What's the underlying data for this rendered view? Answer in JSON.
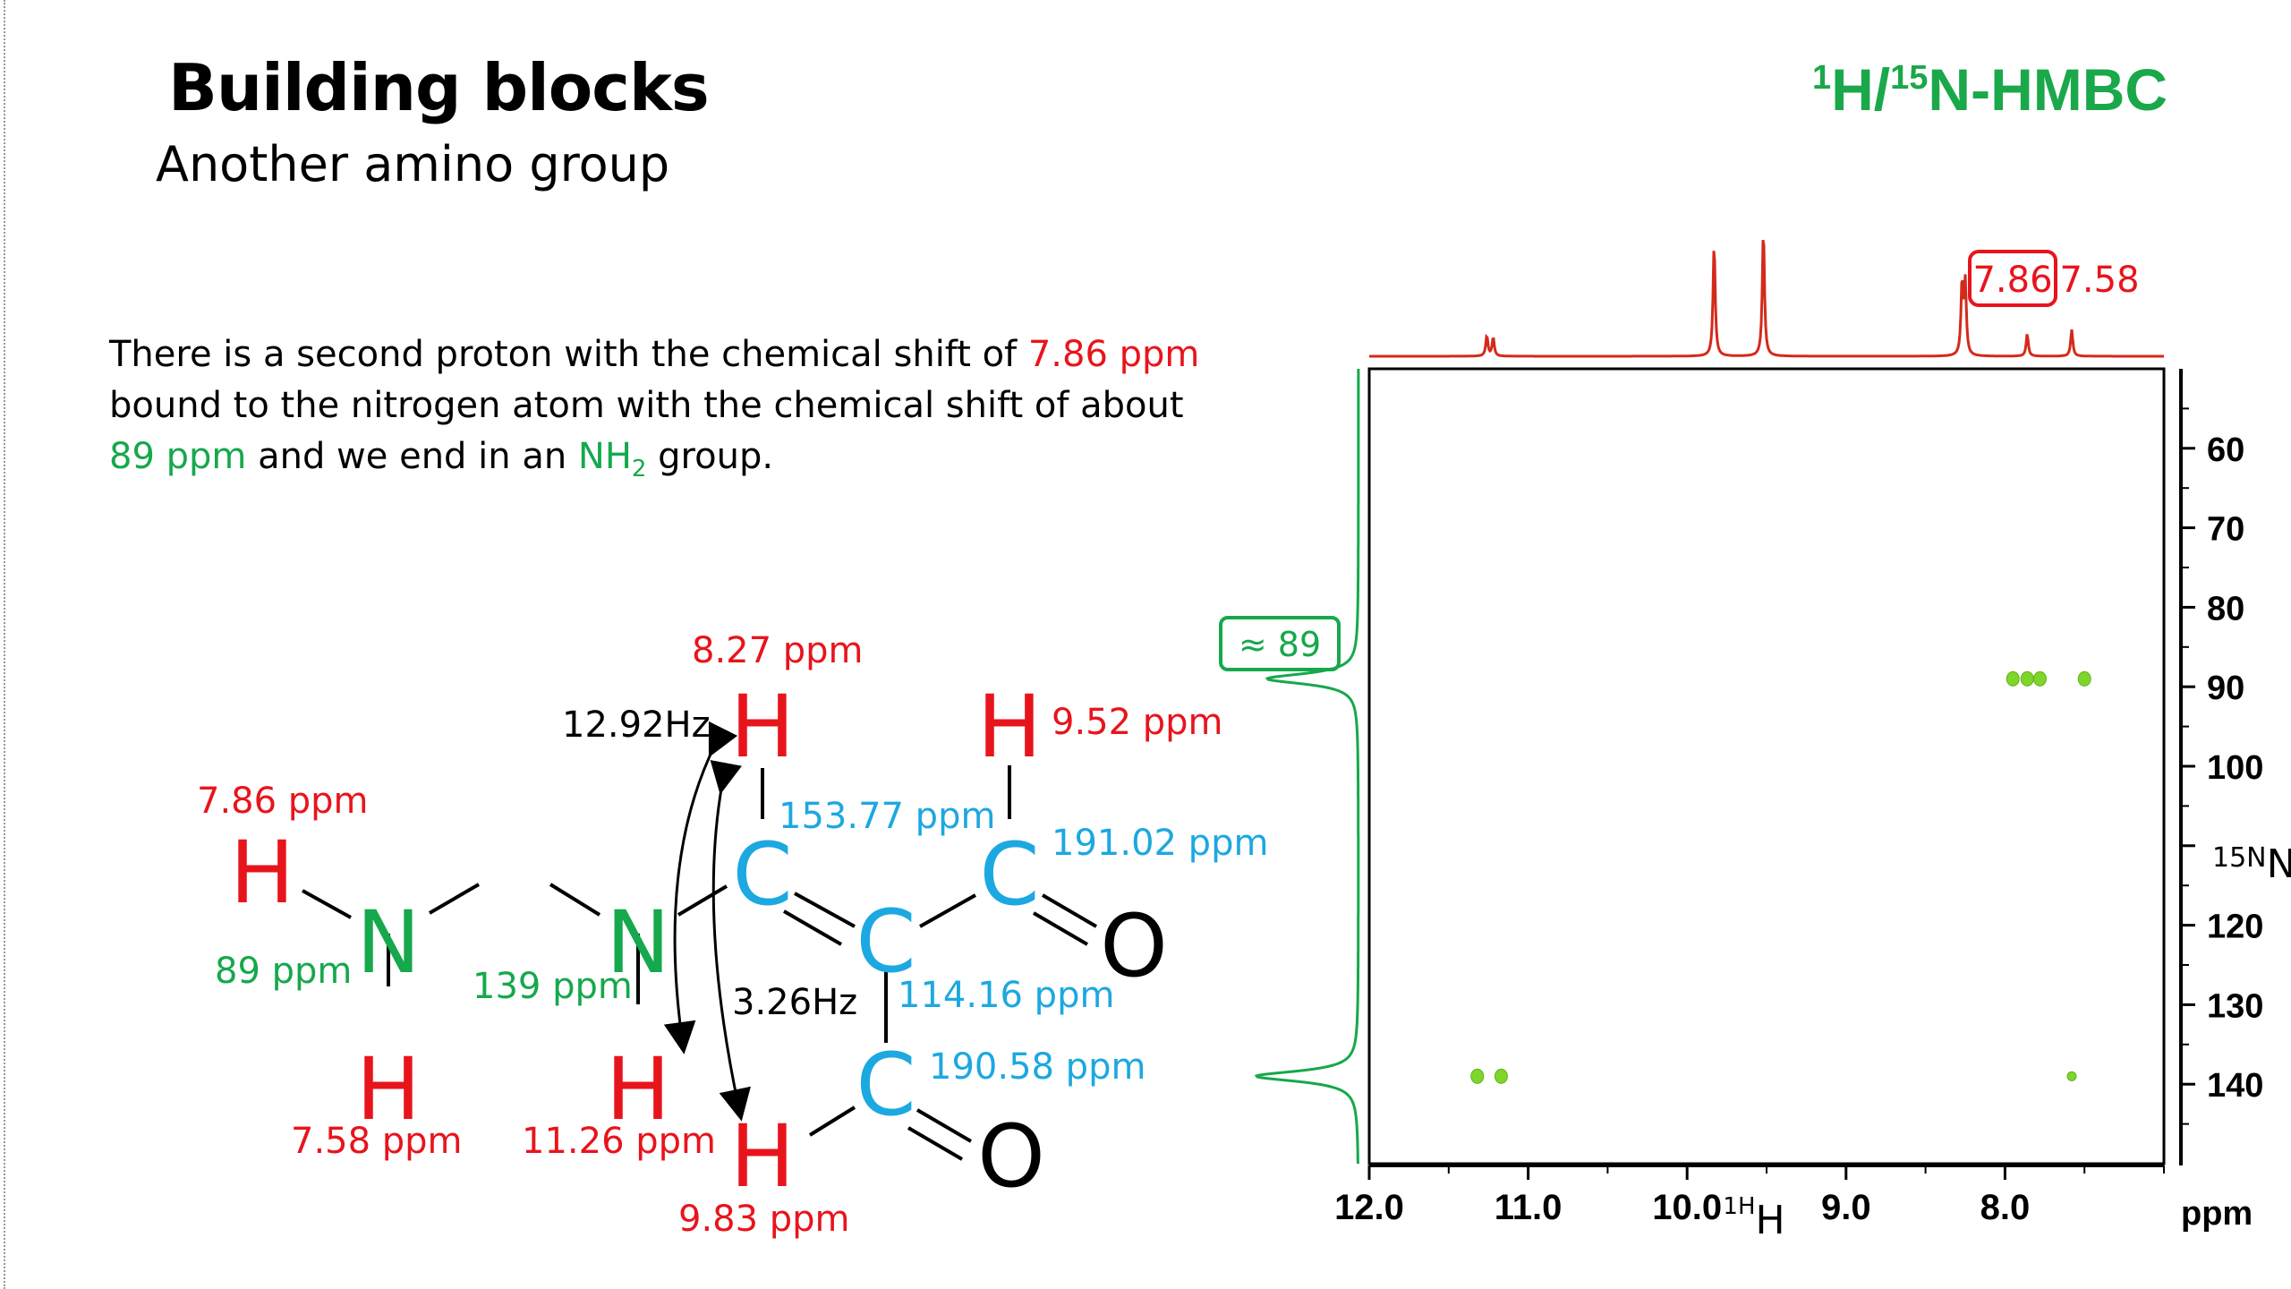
{
  "slide": {
    "title": "Building blocks",
    "subtitle": "Another amino group",
    "spectrum_title": {
      "iso1": "1",
      "nuc1": "H/",
      "iso2": "15",
      "nuc2": "N-HMBC"
    },
    "paragraph": {
      "part1": "There is a second proton with the chemical shift of ",
      "shift1": "7.86 ppm",
      "part2": " bound to the nitrogen atom with the chemical shift of about ",
      "shift2": "89 ppm",
      "part3": " and we end in an ",
      "group": "NH",
      "group_sub": "2",
      "part4": " group."
    }
  },
  "molecule": {
    "atoms": {
      "h1": "H",
      "n1": "N",
      "h2": "H",
      "n2": "N",
      "h3": "H",
      "c1": "C",
      "h4": "H",
      "c2": "C",
      "c3": "C",
      "h5": "H",
      "o1": "O",
      "c4": "C",
      "o2": "O",
      "h6": "H"
    },
    "labels": {
      "h_786": "7.86 ppm",
      "n_89": "89 ppm",
      "h_758": "7.58 ppm",
      "n_139": "139 ppm",
      "h_1126": "11.26 ppm",
      "h_827": "8.27 ppm",
      "h_952": "9.52 ppm",
      "c_15377": "153.77 ppm",
      "c_19102": "191.02 ppm",
      "c_11416": "114.16 ppm",
      "c_19058": "190.58 ppm",
      "h_983": "9.83 ppm"
    },
    "couplings": {
      "j1": "12.92Hz",
      "j2": "3.26Hz"
    },
    "colors": {
      "hydrogen": "#e8141c",
      "nitrogen": "#16a84c",
      "carbon": "#1ca8e0",
      "oxygen": "#000000"
    }
  },
  "chart_data": {
    "type": "scatter",
    "title": "1H/15N-HMBC",
    "xlabel": "1H",
    "ylabel": "15N",
    "x_unit": "ppm",
    "xlim": [
      12.0,
      7.0
    ],
    "ylim": [
      50,
      150
    ],
    "x_ticks": [
      "12.0",
      "11.0",
      "10.0",
      "9.0",
      "8.0"
    ],
    "y_ticks": [
      "60",
      "70",
      "80",
      "90",
      "100",
      "",
      "120",
      "130",
      "140"
    ],
    "cross_peaks": [
      {
        "x": 7.95,
        "y": 89
      },
      {
        "x": 7.86,
        "y": 89
      },
      {
        "x": 7.78,
        "y": 89
      },
      {
        "x": 7.5,
        "y": 89
      },
      {
        "x": 11.32,
        "y": 139
      },
      {
        "x": 11.17,
        "y": 139
      },
      {
        "x": 7.58,
        "y": 139
      }
    ],
    "h_projection_peaks": [
      {
        "x": 11.26,
        "height": 0.1
      },
      {
        "x": 9.83,
        "height": 0.55
      },
      {
        "x": 9.52,
        "height": 0.62
      },
      {
        "x": 8.27,
        "height": 0.35
      },
      {
        "x": 7.86,
        "height": 0.11
      },
      {
        "x": 7.58,
        "height": 0.13
      }
    ],
    "n_projection_peaks": [
      {
        "y": 89,
        "height": 0.85
      },
      {
        "y": 139,
        "height": 0.95
      }
    ],
    "annotations": {
      "boxed_h": "7.86",
      "h_label": "7.58",
      "boxed_n": "≈ 89"
    },
    "colors": {
      "projection_h": "#d42a1a",
      "projection_n": "#16a84c",
      "peaks": "#7fd62a"
    }
  }
}
